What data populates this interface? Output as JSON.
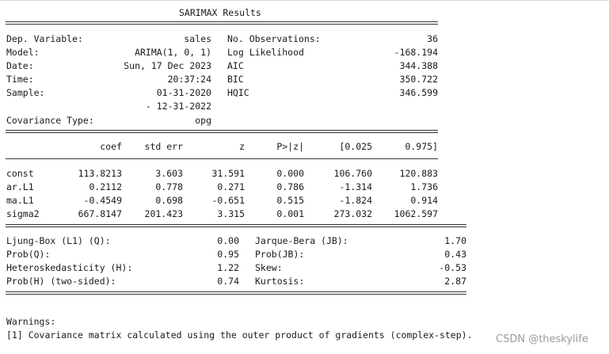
{
  "title": "SARIMAX Results",
  "summary": {
    "left": [
      {
        "label": "Dep. Variable:",
        "value": "sales"
      },
      {
        "label": "Model:",
        "value": "ARIMA(1, 0, 1)"
      },
      {
        "label": "Date:",
        "value": "Sun, 17 Dec 2023"
      },
      {
        "label": "Time:",
        "value": "20:37:24"
      },
      {
        "label": "Sample:",
        "value": "01-31-2020"
      },
      {
        "label": "",
        "value": "- 12-31-2022"
      },
      {
        "label": "Covariance Type:",
        "value": "opg"
      }
    ],
    "right": [
      {
        "label": "No. Observations:",
        "value": "36"
      },
      {
        "label": "Log Likelihood",
        "value": "-168.194"
      },
      {
        "label": "AIC",
        "value": "344.388"
      },
      {
        "label": "BIC",
        "value": "350.722"
      },
      {
        "label": "HQIC",
        "value": "346.599"
      }
    ]
  },
  "coef_table": {
    "headers": [
      "coef",
      "std err",
      "z",
      "P>|z|",
      "[0.025",
      "0.975]"
    ],
    "rows": [
      {
        "name": "const",
        "values": [
          "113.8213",
          "3.603",
          "31.591",
          "0.000",
          "106.760",
          "120.883"
        ]
      },
      {
        "name": "ar.L1",
        "values": [
          "0.2112",
          "0.778",
          "0.271",
          "0.786",
          "-1.314",
          "1.736"
        ]
      },
      {
        "name": "ma.L1",
        "values": [
          "-0.4549",
          "0.698",
          "-0.651",
          "0.515",
          "-1.824",
          "0.914"
        ]
      },
      {
        "name": "sigma2",
        "values": [
          "667.8147",
          "201.423",
          "3.315",
          "0.001",
          "273.032",
          "1062.597"
        ]
      }
    ]
  },
  "diagnostics": {
    "left": [
      {
        "label": "Ljung-Box (L1) (Q):",
        "value": "0.00"
      },
      {
        "label": "Prob(Q):",
        "value": "0.95"
      },
      {
        "label": "Heteroskedasticity (H):",
        "value": "1.22"
      },
      {
        "label": "Prob(H) (two-sided):",
        "value": "0.74"
      }
    ],
    "right": [
      {
        "label": "Jarque-Bera (JB):",
        "value": "1.70"
      },
      {
        "label": "Prob(JB):",
        "value": "0.43"
      },
      {
        "label": "Skew:",
        "value": "-0.53"
      },
      {
        "label": "Kurtosis:",
        "value": "2.87"
      }
    ]
  },
  "warnings": {
    "heading": "Warnings:",
    "lines": [
      "[1] Covariance matrix calculated using the outer product of gradients (complex-step)."
    ]
  },
  "watermark": "CSDN @theskylife"
}
